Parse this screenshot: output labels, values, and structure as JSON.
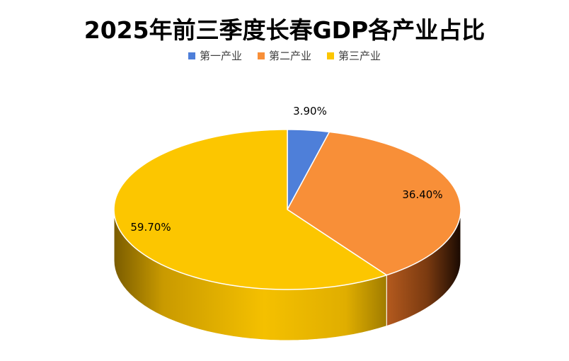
{
  "chart_data": {
    "type": "pie",
    "title": "2025年前三季度长春GDP各产业占比",
    "categories": [
      "第一产业",
      "第二产业",
      "第三产业"
    ],
    "values": [
      3.9,
      36.4,
      59.7
    ],
    "value_labels": [
      "3.90%",
      "36.40%",
      "59.70%"
    ],
    "colors": [
      "#4e7fd9",
      "#f88f38",
      "#fcc600"
    ],
    "legend_position": "top",
    "style": "3d"
  }
}
